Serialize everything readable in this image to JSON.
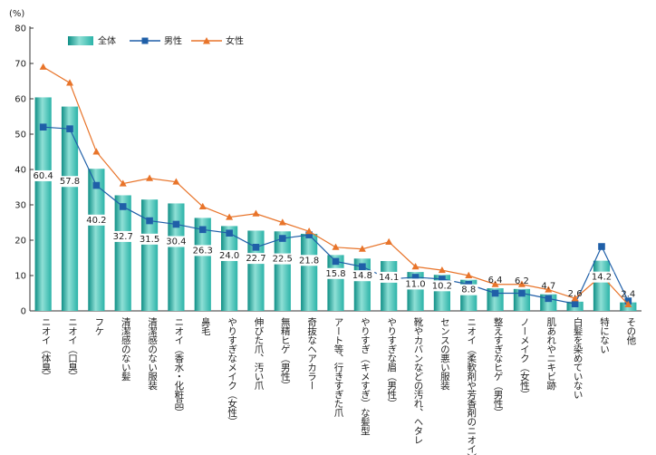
{
  "chart_data": {
    "type": "bar",
    "unit_label": "(%)",
    "ylim": [
      0,
      80
    ],
    "yticks": [
      0,
      10,
      20,
      30,
      40,
      50,
      60,
      70,
      80
    ],
    "grid": false,
    "legend_position": "top-left",
    "categories": [
      "ニオイ（体臭）",
      "ニオイ（口臭）",
      "フケ",
      "清潔感のない髪",
      "清潔感のない服装",
      "ニオイ（香水・化粧品）",
      "鼻毛",
      "やりすぎなメイク（女性）",
      "伸びた爪、汚い爪",
      "無精ヒゲ（男性）",
      "奇抜なヘアカラー",
      "アート等、行きすぎた爪",
      "やりすぎ（キメすぎ）な髪型",
      "やりすぎな眉（男性）",
      "靴やカバンなどの汚れ、ヘタレ",
      "センスの悪い服装",
      "ニオイ（柔軟剤や芳香剤のニオイ）",
      "整えすぎなヒゲ（男性）",
      "ノーメイク（女性）",
      "肌あれやニキビ跡",
      "白髪を染めていない",
      "特にない",
      "その他"
    ],
    "series": [
      {
        "name": "全体",
        "type": "bar",
        "color": "#2bb3a8",
        "values": [
          60.4,
          57.8,
          40.2,
          32.7,
          31.5,
          30.4,
          26.3,
          24.0,
          22.7,
          22.5,
          21.8,
          15.8,
          14.8,
          14.1,
          11.0,
          10.2,
          8.8,
          6.4,
          6.2,
          4.7,
          2.6,
          14.2,
          2.4
        ]
      },
      {
        "name": "男性",
        "type": "line",
        "color": "#1f5fa8",
        "marker": "square",
        "values": [
          52,
          51.5,
          35.5,
          29.5,
          25.5,
          24.5,
          23,
          22,
          18,
          20.5,
          21.5,
          14,
          12.5,
          9,
          9.5,
          9,
          7.5,
          5,
          5,
          3.5,
          2,
          18.2,
          2.8
        ]
      },
      {
        "name": "女性",
        "type": "line",
        "color": "#e8742a",
        "marker": "triangle",
        "values": [
          69,
          64.5,
          45,
          36,
          37.5,
          36.5,
          29.5,
          26.5,
          27.5,
          25,
          22.5,
          18,
          17.5,
          19.5,
          12.5,
          11.5,
          10,
          7.5,
          7.5,
          6,
          3.5,
          10,
          1.8
        ]
      }
    ]
  }
}
